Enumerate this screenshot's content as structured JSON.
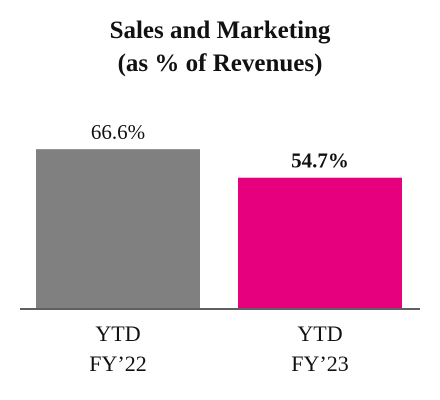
{
  "chart_data": {
    "type": "bar",
    "title": "Sales and Marketing",
    "subtitle": "(as % of Revenues)",
    "categories": [
      [
        "YTD",
        "FY’22"
      ],
      [
        "YTD",
        "FY’23"
      ]
    ],
    "values": [
      66.6,
      54.7
    ],
    "data_labels": [
      "66.6%",
      "54.7%"
    ],
    "data_label_bold": [
      false,
      true
    ],
    "colors": [
      "#808080",
      "#e6007e"
    ],
    "axis_color": "#606060",
    "ylim": [
      0,
      80
    ],
    "grid": false,
    "legend": "none"
  }
}
